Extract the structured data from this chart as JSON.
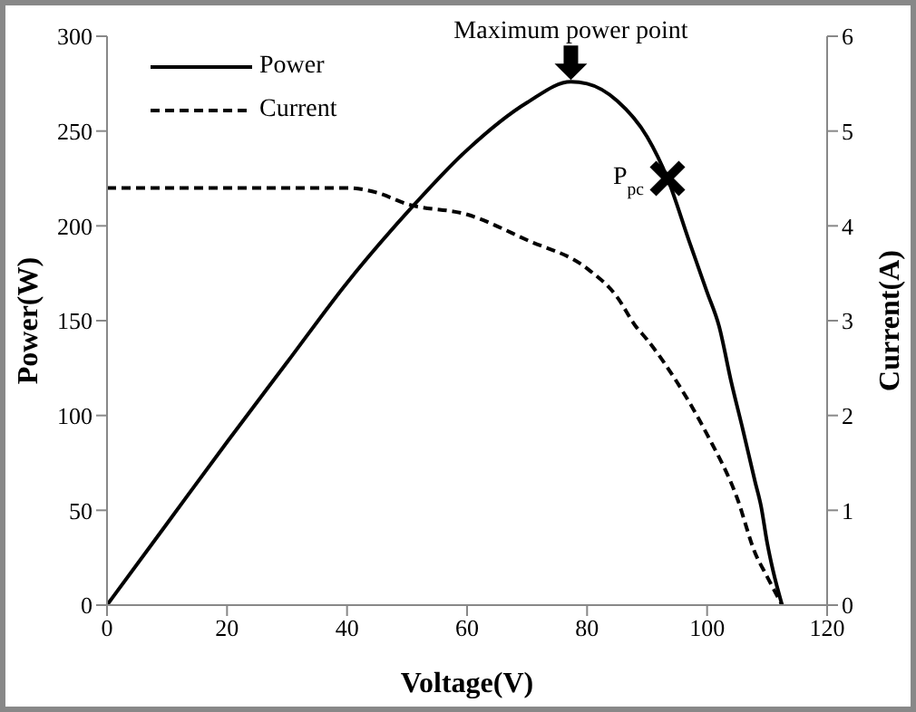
{
  "chart_data": {
    "type": "line",
    "xlabel": "Voltage(V)",
    "ylabel": "Power(W)",
    "y2label": "Current(A)",
    "xlim": [
      0,
      120
    ],
    "xticks": [
      0,
      20,
      40,
      60,
      80,
      100,
      120
    ],
    "ylim": [
      0,
      300
    ],
    "yticks": [
      0,
      50,
      100,
      150,
      200,
      250,
      300
    ],
    "y2lim": [
      0,
      6
    ],
    "y2ticks": [
      0,
      1,
      2,
      3,
      4,
      5,
      6
    ],
    "grid": false,
    "legend": "top left",
    "marker": "none",
    "series": [
      {
        "name": "Power",
        "color": "#000000",
        "line_style": "solid",
        "x": [
          0,
          10,
          20,
          30,
          40,
          50,
          60,
          70,
          77.3,
          80,
          85,
          90,
          93.4,
          97,
          100,
          102,
          104,
          106,
          108,
          109,
          110,
          111,
          112.5
        ],
        "values": [
          0,
          43,
          86,
          128,
          170,
          207,
          240,
          265,
          276,
          275,
          266,
          247,
          225,
          192,
          165,
          147,
          118,
          92,
          65,
          52,
          33,
          18,
          0
        ]
      },
      {
        "name": "Current",
        "color": "#000000",
        "line_style": "dashed",
        "axis": "y2",
        "x": [
          0,
          10,
          20,
          30,
          40,
          45,
          50,
          60,
          70,
          80,
          85,
          88,
          90,
          95,
          100,
          105,
          108,
          110,
          112.5
        ],
        "values": [
          4.4,
          4.4,
          4.4,
          4.4,
          4.4,
          4.35,
          4.23,
          4.12,
          3.85,
          3.55,
          3.25,
          2.95,
          2.8,
          2.35,
          1.8,
          1.13,
          0.55,
          0.3,
          0
        ]
      }
    ],
    "annotations": [
      {
        "text": "Maximum power point",
        "x": 77.3,
        "y": 276
      },
      {
        "text": "P$_{pc}$",
        "x": 93.4,
        "y": 225
      }
    ]
  }
}
